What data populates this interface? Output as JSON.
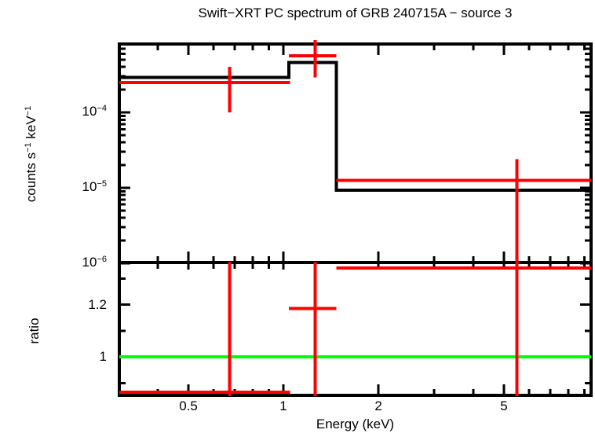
{
  "title": "Swift−XRT PC spectrum of GRB 240715A − source 3",
  "axes": {
    "x_label": "Energy (keV)",
    "y_top_label": {
      "t1": "counts s",
      "s1": "−1",
      "t2": " keV",
      "s2": "−1"
    },
    "y_bottom_label": "ratio"
  },
  "colors": {
    "frame": "#000000",
    "model": "#000000",
    "data": "#ff0000",
    "unity": "#00ff00",
    "background": "#ffffff"
  },
  "chart_data": {
    "type": "spectrum-steps-with-errorbars",
    "title": "Swift−XRT PC spectrum of GRB 240715A − source 3",
    "xlabel": "Energy (keV)",
    "xscale": "log",
    "xlim": [
      0.302,
      9.44
    ],
    "x_major_ticks": [
      {
        "value": 0.5,
        "label": "0.5"
      },
      {
        "value": 1,
        "label": "1"
      },
      {
        "value": 2,
        "label": "2"
      },
      {
        "value": 5,
        "label": "5"
      }
    ],
    "x_minor_ticks": [
      0.4,
      0.6,
      0.7,
      0.8,
      0.9,
      3,
      4,
      6,
      7,
      8,
      9
    ],
    "panels": [
      {
        "name": "counts",
        "ylabel": "counts s^-1 keV^-1",
        "yscale": "log",
        "ylim": [
          1.02e-06,
          0.000807
        ],
        "y_major_ticks": [
          {
            "value": 0.0001,
            "base": "10",
            "exp": "−4"
          },
          {
            "value": 1e-05,
            "base": "10",
            "exp": "−5"
          },
          {
            "value": 1e-06,
            "base": "10",
            "exp": "−6"
          }
        ],
        "model_steps": [
          {
            "e_lo": 0.302,
            "e_hi": 1.04,
            "value": 0.00029
          },
          {
            "e_lo": 1.04,
            "e_hi": 1.47,
            "value": 0.00046
          },
          {
            "e_lo": 1.47,
            "e_hi": 9.44,
            "value": 9.3e-06
          }
        ],
        "points": [
          {
            "e": 0.675,
            "e_lo": 0.302,
            "e_hi": 1.05,
            "value": 0.00025,
            "upper": 0.0004,
            "lower": 0.0001
          },
          {
            "e": 1.26,
            "e_lo": 1.04,
            "e_hi": 1.47,
            "value": 0.00056,
            "upper": 0.00091,
            "lower": 0.00029
          },
          {
            "e": 5.5,
            "e_lo": 1.47,
            "e_hi": 9.44,
            "value": 1.25e-05,
            "upper": 2.4e-05,
            "lower": null
          }
        ]
      },
      {
        "name": "ratio",
        "ylabel": "ratio",
        "yscale": "linear",
        "ylim": [
          0.853,
          1.361
        ],
        "unity": 1,
        "y_major_ticks": [
          {
            "value": 1.2,
            "label": "1.2"
          },
          {
            "value": 1,
            "label": "1"
          }
        ],
        "y_minor_ticks": [
          0.9,
          1.1,
          1.3
        ],
        "points": [
          {
            "e": 0.675,
            "e_lo": 0.302,
            "e_hi": 1.05,
            "value": 0.865,
            "upper": null,
            "lower": null
          },
          {
            "e": 1.26,
            "e_lo": 1.04,
            "e_hi": 1.47,
            "value": 1.185,
            "upper": null,
            "lower": null
          },
          {
            "e": 5.5,
            "e_lo": 1.47,
            "e_hi": 9.44,
            "value": 1.34,
            "upper": null,
            "lower": null
          }
        ]
      }
    ]
  }
}
